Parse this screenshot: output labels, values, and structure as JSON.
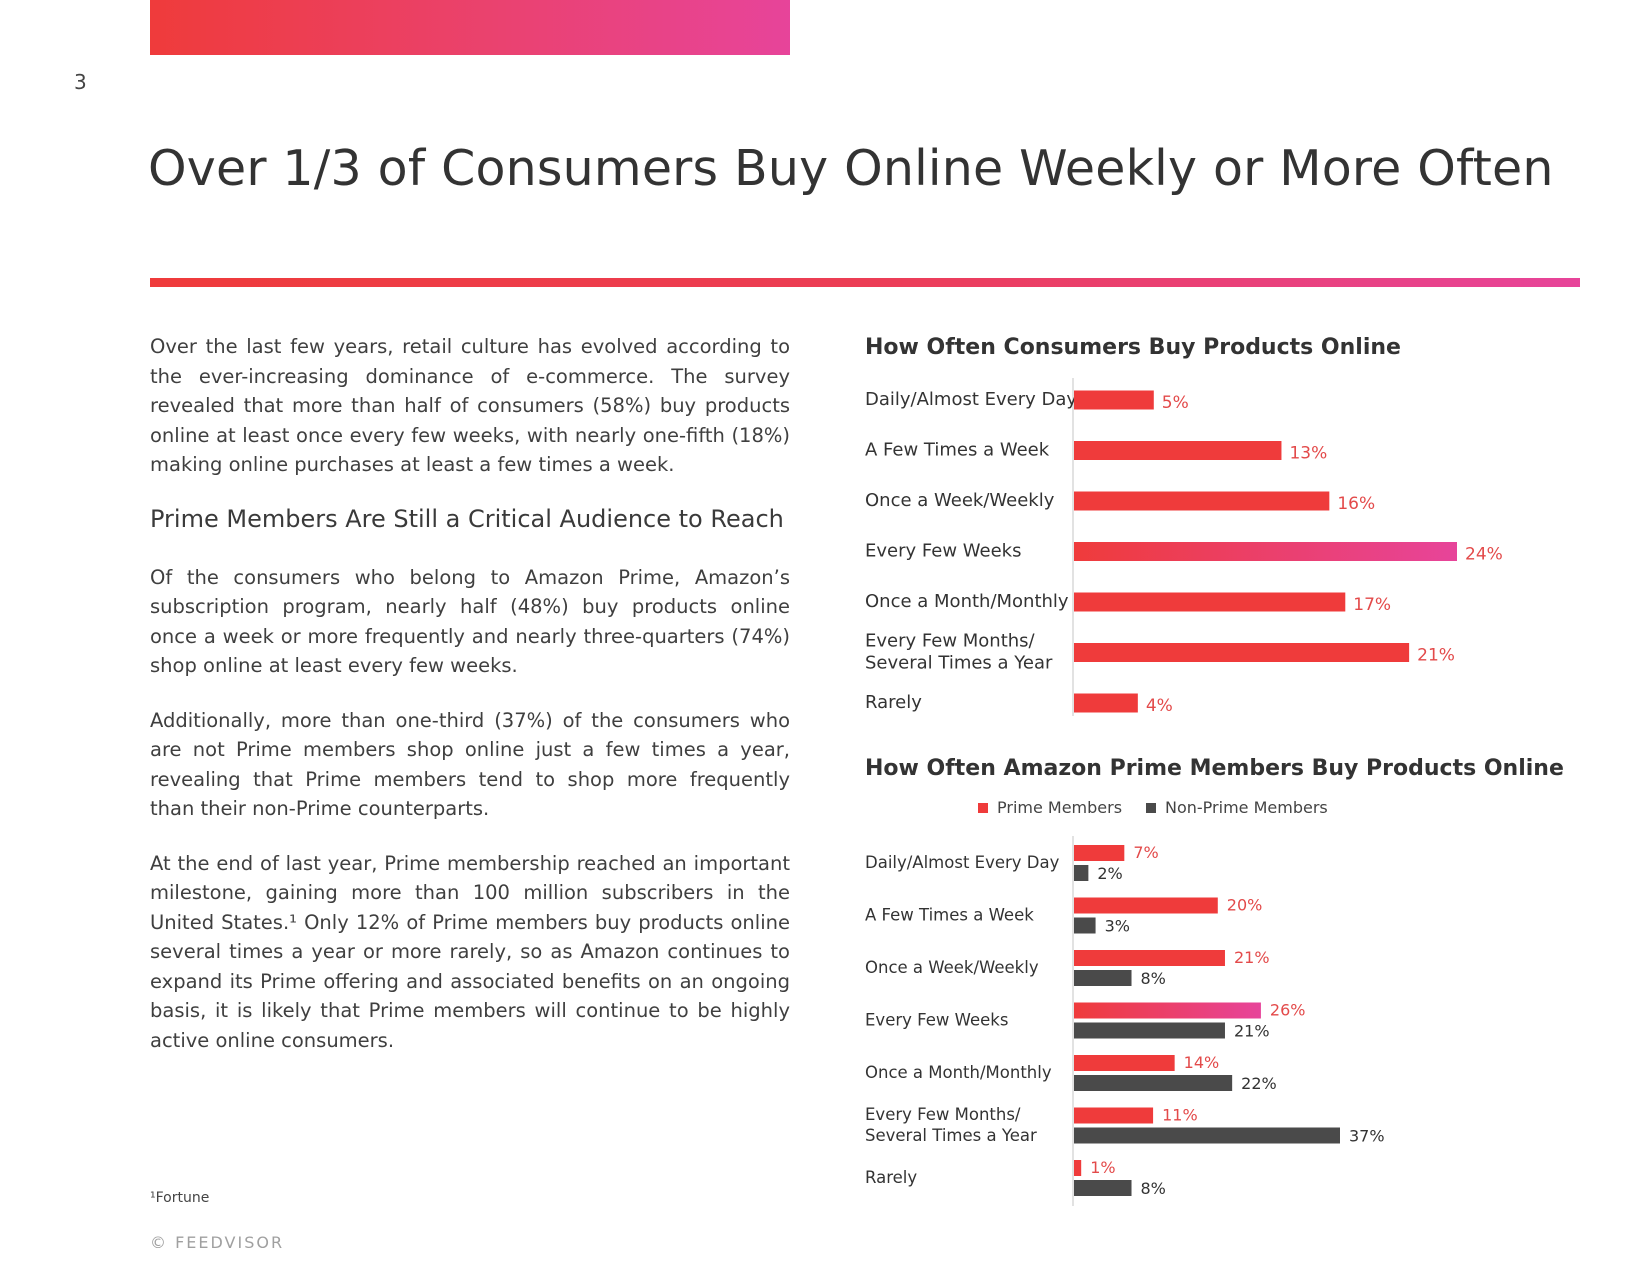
{
  "page": {
    "number": "3",
    "title": "Over 1/3 of Consumers Buy Online Weekly or More Often",
    "footnote": "¹Fortune",
    "copyright": "© FEEDVISOR"
  },
  "body": {
    "para1": "Over the last few years, retail culture has evolved according to the ever-increasing dominance of e-commerce. The survey revealed that more than half of consumers (58%) buy products online at least once every few weeks, with nearly one-fifth (18%) making online purchases at least a few times a week.",
    "subheading": "Prime Members Are Still a Critical Audience to Reach",
    "para2": "Of the consumers who belong to Amazon Prime, Amazon’s subscription program, nearly half (48%) buy products online once a week or more frequently and nearly three-quarters (74%) shop online at least every few weeks.",
    "para3": "Additionally, more than one-third (37%) of the consumers who are not Prime members shop online just a few times a year, revealing that Prime members tend to shop more frequently than their non-Prime counterparts.",
    "para4": "At the end of last year, Prime membership reached an important milestone, gaining more than 100 million subscribers in the United States.¹ Only 12% of Prime members buy products online several times a year or more rarely, so as Amazon continues to expand its Prime offering and associated benefits on an ongoing basis, it is likely that Prime members will continue to be highly active online consumers."
  },
  "chart_data": [
    {
      "type": "bar",
      "orientation": "horizontal",
      "title": "How Often Consumers Buy Products Online",
      "categories": [
        "Daily/Almost Every Day",
        "A Few Times a Week",
        "Once a Week/Weekly",
        "Every Few Weeks",
        "Once a Month/Monthly",
        "Every Few Months/\nSeveral Times a Year",
        "Rarely"
      ],
      "values": [
        5,
        13,
        16,
        24,
        17,
        21,
        4
      ],
      "value_labels": [
        "5%",
        "13%",
        "16%",
        "24%",
        "17%",
        "21%",
        "4%"
      ],
      "colors": {
        "bar": "#ef3b3b",
        "highlight": "#e7449a",
        "label": "#e34a4a"
      },
      "xlim": [
        0,
        27
      ],
      "grid": false
    },
    {
      "type": "bar",
      "orientation": "horizontal",
      "title": "How Often Amazon Prime Members Buy Products Online",
      "categories": [
        "Daily/Almost Every Day",
        "A Few Times a Week",
        "Once a Week/Weekly",
        "Every Few Weeks",
        "Once a Month/Monthly",
        "Every Few Months/\nSeveral Times a Year",
        "Rarely"
      ],
      "series": [
        {
          "name": "Prime Members",
          "values": [
            7,
            20,
            21,
            26,
            14,
            11,
            1
          ],
          "value_labels": [
            "7%",
            "20%",
            "21%",
            "26%",
            "14%",
            "11%",
            "1%"
          ],
          "color": "#ef3b3b"
        },
        {
          "name": "Non-Prime Members",
          "values": [
            2,
            3,
            8,
            21,
            22,
            37,
            8
          ],
          "value_labels": [
            "2%",
            "3%",
            "8%",
            "21%",
            "22%",
            "37%",
            "8%"
          ],
          "color": "#4a4a4a"
        }
      ],
      "legend": "top",
      "xlim": [
        0,
        42
      ],
      "grid": false
    }
  ]
}
